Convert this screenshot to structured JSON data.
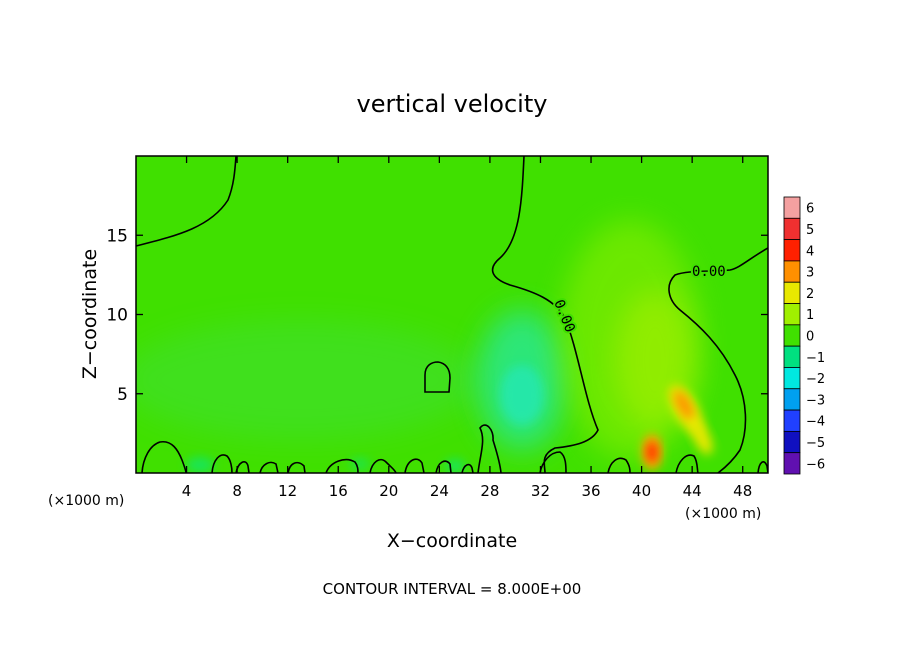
{
  "chart_data": {
    "type": "contour",
    "title": "vertical velocity",
    "xlabel": "X−coordinate",
    "ylabel": "Z−coordinate",
    "x_unit": "(×1000 m)",
    "x_unit_right": "(×1000 m)",
    "xlim": [
      0,
      50
    ],
    "ylim": [
      0,
      20
    ],
    "x_ticks": [
      4,
      8,
      12,
      16,
      20,
      24,
      28,
      32,
      36,
      40,
      44,
      48
    ],
    "y_ticks": [
      5,
      10,
      15
    ],
    "contour_interval_text": "CONTOUR INTERVAL = 8.000E+00",
    "contour_label": "0.00",
    "colorbar": {
      "levels": [
        6,
        5,
        4,
        3,
        2,
        1,
        0,
        -1,
        -2,
        -3,
        -4,
        -5,
        -6
      ],
      "level_labels": [
        "6",
        "5",
        "4",
        "3",
        "2",
        "1",
        "0",
        "−1",
        "−2",
        "−3",
        "−4",
        "−5",
        "−6"
      ],
      "colors": [
        "#f4a0a0",
        "#f03030",
        "#ff2000",
        "#ff9000",
        "#e8e800",
        "#a0f000",
        "#40e000",
        "#00e080",
        "#00e8e0",
        "#00a0f0",
        "#2040ff",
        "#1010c0",
        "#6010b0"
      ]
    },
    "features": [
      {
        "kind": "updraft",
        "x": 41,
        "z": 1.2,
        "w": 5.5
      },
      {
        "kind": "updraft",
        "x": 44,
        "z": 4,
        "w": 4.5
      },
      {
        "kind": "updraft",
        "x": 45,
        "z": 2,
        "w": 3.5
      },
      {
        "kind": "weak-updraft",
        "x": 40,
        "z": 9,
        "w": 1.5
      },
      {
        "kind": "downdraft",
        "x": 30,
        "z": 5,
        "w": -1.2
      }
    ]
  }
}
